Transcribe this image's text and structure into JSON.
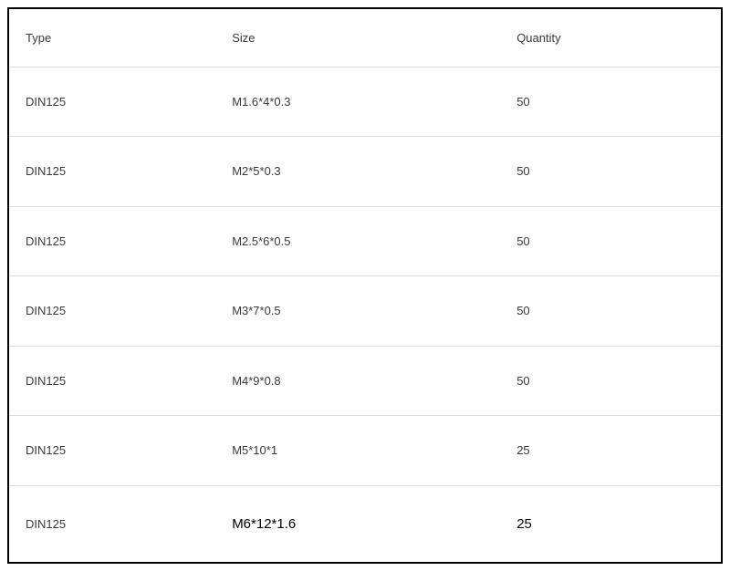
{
  "table": {
    "columns": [
      "Type",
      "Size",
      "Quantity"
    ],
    "rows": [
      {
        "type": "DIN125",
        "size": "M1.6*4*0.3",
        "quantity": "50"
      },
      {
        "type": "DIN125",
        "size": "M2*5*0.3",
        "quantity": "50"
      },
      {
        "type": "DIN125",
        "size": "M2.5*6*0.5",
        "quantity": "50"
      },
      {
        "type": "DIN125",
        "size": "M3*7*0.5",
        "quantity": "50"
      },
      {
        "type": "DIN125",
        "size": "M4*9*0.8",
        "quantity": "50"
      },
      {
        "type": "DIN125",
        "size": "M5*10*1",
        "quantity": "25"
      },
      {
        "type": "DIN125",
        "size": "M6*12*1.6",
        "quantity": "25"
      }
    ],
    "border_color": "#000000",
    "row_border_color": "#dddddd",
    "text_color": "#3a3a3a",
    "background_color": "#ffffff",
    "font_size": 13,
    "last_row_highlight_font_size": 15,
    "column_widths_percent": [
      29,
      40,
      31
    ]
  }
}
